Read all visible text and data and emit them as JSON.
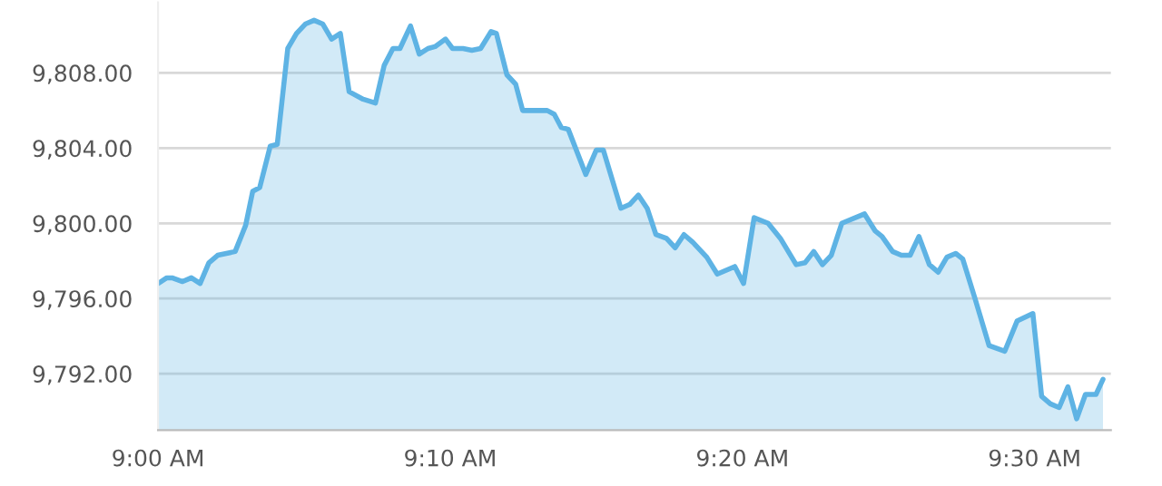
{
  "chart_data": {
    "type": "area",
    "x": [
      9.0,
      9.005,
      9.008,
      9.014,
      9.019,
      9.024,
      9.029,
      9.034,
      9.044,
      9.05,
      9.054,
      9.058,
      9.064,
      9.068,
      9.074,
      9.079,
      9.084,
      9.089,
      9.094,
      9.099,
      9.104,
      9.109,
      9.117,
      9.124,
      9.129,
      9.134,
      9.138,
      9.144,
      9.149,
      9.154,
      9.158,
      9.164,
      9.168,
      9.174,
      9.179,
      9.184,
      9.19,
      9.193,
      9.199,
      9.204,
      9.208,
      9.215,
      9.222,
      9.226,
      9.23,
      9.234,
      9.244,
      9.25,
      9.254,
      9.264,
      9.269,
      9.274,
      9.279,
      9.284,
      9.29,
      9.295,
      9.3,
      9.305,
      9.313,
      9.319,
      9.329,
      9.334,
      9.34,
      9.348,
      9.355,
      9.364,
      9.369,
      9.374,
      9.379,
      9.384,
      9.39,
      9.403,
      9.409,
      9.413,
      9.419,
      9.424,
      9.429,
      9.434,
      9.44,
      9.445,
      9.45,
      9.455,
      9.459,
      9.466,
      9.474,
      9.483,
      9.49,
      9.499,
      9.504,
      9.509,
      9.514,
      9.519,
      9.524,
      9.529,
      9.535,
      9.539
    ],
    "series": [
      {
        "color": "#5eb3e4",
        "values": [
          9796.8,
          9797.1,
          9797.1,
          9796.9,
          9797.1,
          9796.8,
          9797.9,
          9798.3,
          9798.5,
          9799.9,
          9801.7,
          9801.9,
          9804.1,
          9804.2,
          9809.3,
          9810.1,
          9810.6,
          9810.8,
          9810.6,
          9809.8,
          9810.1,
          9807.0,
          9806.6,
          9806.4,
          9808.4,
          9809.3,
          9809.3,
          9810.5,
          9809.0,
          9809.3,
          9809.4,
          9809.8,
          9809.3,
          9809.3,
          9809.2,
          9809.3,
          9810.2,
          9810.1,
          9807.9,
          9807.4,
          9806.0,
          9806.0,
          9806.0,
          9805.8,
          9805.1,
          9805.0,
          9802.6,
          9803.9,
          9803.9,
          9800.8,
          9801.0,
          9801.5,
          9800.8,
          9799.4,
          9799.2,
          9798.7,
          9799.4,
          9799.0,
          9798.2,
          9797.3,
          9797.7,
          9796.8,
          9800.3,
          9800.0,
          9799.2,
          9797.8,
          9797.9,
          9798.5,
          9797.8,
          9798.3,
          9800.0,
          9800.5,
          9799.6,
          9799.3,
          9798.5,
          9798.3,
          9798.3,
          9799.3,
          9797.8,
          9797.4,
          9798.2,
          9798.4,
          9798.1,
          9796.0,
          9793.5,
          9793.2,
          9794.8,
          9795.2,
          9790.8,
          9790.4,
          9790.2,
          9791.3,
          9789.6,
          9790.9,
          9790.9,
          9791.7
        ]
      }
    ],
    "xlim": [
      9.0,
      9.5435
    ],
    "xticks": [
      {
        "value": 9.0,
        "label": "9:00 AM"
      },
      {
        "value": 9.16667,
        "label": "9:10 AM"
      },
      {
        "value": 9.33333,
        "label": "9:20 AM"
      },
      {
        "value": 9.5,
        "label": "9:30 AM"
      }
    ],
    "ylim": [
      9789,
      9811.75
    ],
    "yticks": [
      {
        "value": 9792,
        "label": "9,792.00"
      },
      {
        "value": 9796,
        "label": "9,796.00"
      },
      {
        "value": 9800,
        "label": "9,800.00"
      },
      {
        "value": 9804,
        "label": "9,804.00"
      },
      {
        "value": 9808,
        "label": "9,808.00"
      }
    ],
    "grid": "y",
    "legend": false,
    "marker": "none",
    "line_style": "solid"
  }
}
